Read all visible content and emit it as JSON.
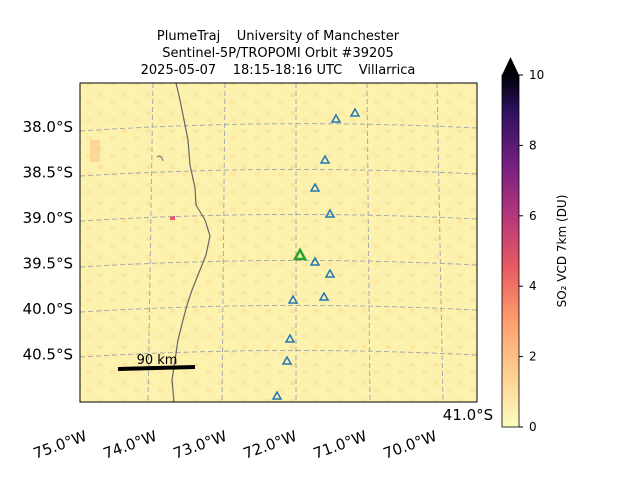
{
  "title": [
    "PlumeTraj    University of Manchester",
    "Sentinel-5P/TROPOMI Orbit #39205",
    "2025-05-07    18:15-18:16 UTC    Villarrica"
  ],
  "lat_labels": [
    "38.0°S",
    "38.5°S",
    "39.0°S",
    "39.5°S",
    "40.0°S",
    "40.5°S"
  ],
  "lon_labels": [
    "75.0°W",
    "74.0°W",
    "73.0°W",
    "72.0°W",
    "71.0°W",
    "70.0°W"
  ],
  "corner_label": "41.0°S",
  "scale_bar": "90 km",
  "colorbar": {
    "label": "SO₂ VCD 7km (DU)",
    "lim": [
      0,
      10
    ],
    "ticks": [
      0,
      2,
      4,
      6,
      8,
      10
    ]
  }
}
